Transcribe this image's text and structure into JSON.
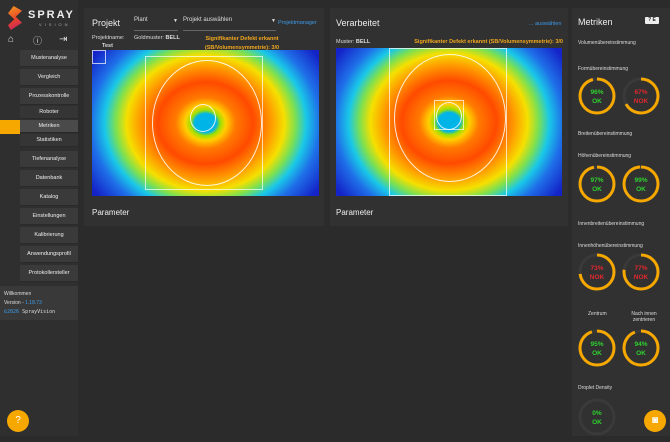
{
  "app": {
    "logo_text": "SPRAY",
    "logo_sub": "VISION"
  },
  "sidebar": {
    "icons": [
      "home-icon",
      "help-icon",
      "logout-icon"
    ],
    "items": [
      {
        "label": "Musteranalyse"
      },
      {
        "label": "Vergleich"
      },
      {
        "label": "Prozesskontrolle"
      },
      {
        "label": "Roboter"
      },
      {
        "label": "Metriken",
        "active": true
      },
      {
        "label": "Statistiken"
      },
      {
        "label": "Tiefenanalyse"
      },
      {
        "label": "Datenbank"
      },
      {
        "label": "Katalog"
      },
      {
        "label": "Einstellungen"
      },
      {
        "label": "Kalibrierung"
      },
      {
        "label": "Anwendungsprofil"
      },
      {
        "label": "Protokollersteller"
      }
    ],
    "footer": {
      "welcome": "Willkommen",
      "version_label": "Version - ",
      "version": "1.18.73",
      "copyright_year": "©2026",
      "copyright_name": "SprayVision"
    }
  },
  "project": {
    "title": "Projekt",
    "plant_select": "Plant",
    "project_select": "Projekt auswählen",
    "manager_link": "Projektmanager",
    "name_label": "Projektname:",
    "name_value": "Test",
    "golden_label": "Goldmuster:",
    "golden_value": "BELL",
    "warning": "Signifikanter Defekt erkannt (SB/Volumensymmetrie): 3/0",
    "parameter": "Parameter"
  },
  "processed": {
    "title": "Verarbeitet",
    "select_link": "... auswählen",
    "pattern_label": "Muster:",
    "pattern_value": "BELL",
    "warning": "Signifikanter Defekt erkannt (SB/Volumensymmetrie): 3/0",
    "parameter": "Parameter"
  },
  "metrics": {
    "title": "Metriken",
    "toggle": "? E",
    "colors": {
      "ok": "#2ed12e",
      "nok": "#e0282e",
      "ring": "#f6a800",
      "track": "#3a3a3a"
    },
    "labels": [
      "Volumenübereinstimmung",
      "Formübereinstimmung",
      "Breitenübereinstimmung",
      "Höhenübereinstimmung",
      "Innenbreitenübereinstimmung",
      "Innenhöhenübereinstimmung",
      "Zentrum",
      "Nach innen zentrieren",
      "Droplet Density"
    ],
    "gauges": [
      {
        "value": "96%",
        "status": "OK",
        "fraction": 0.96
      },
      {
        "value": "67%",
        "status": "NOK",
        "fraction": 0.67
      },
      {
        "value": "97%",
        "status": "OK",
        "fraction": 0.97
      },
      {
        "value": "99%",
        "status": "OK",
        "fraction": 0.99
      },
      {
        "value": "73%",
        "status": "NOK",
        "fraction": 0.73
      },
      {
        "value": "77%",
        "status": "NOK",
        "fraction": 0.77
      },
      {
        "value": "95%",
        "status": "OK",
        "fraction": 0.95
      },
      {
        "value": "94%",
        "status": "OK",
        "fraction": 0.94
      },
      {
        "value": "0%",
        "status": "OK",
        "fraction": 0
      }
    ]
  },
  "fab": {
    "help": "help-icon",
    "camera": "camera-icon"
  }
}
